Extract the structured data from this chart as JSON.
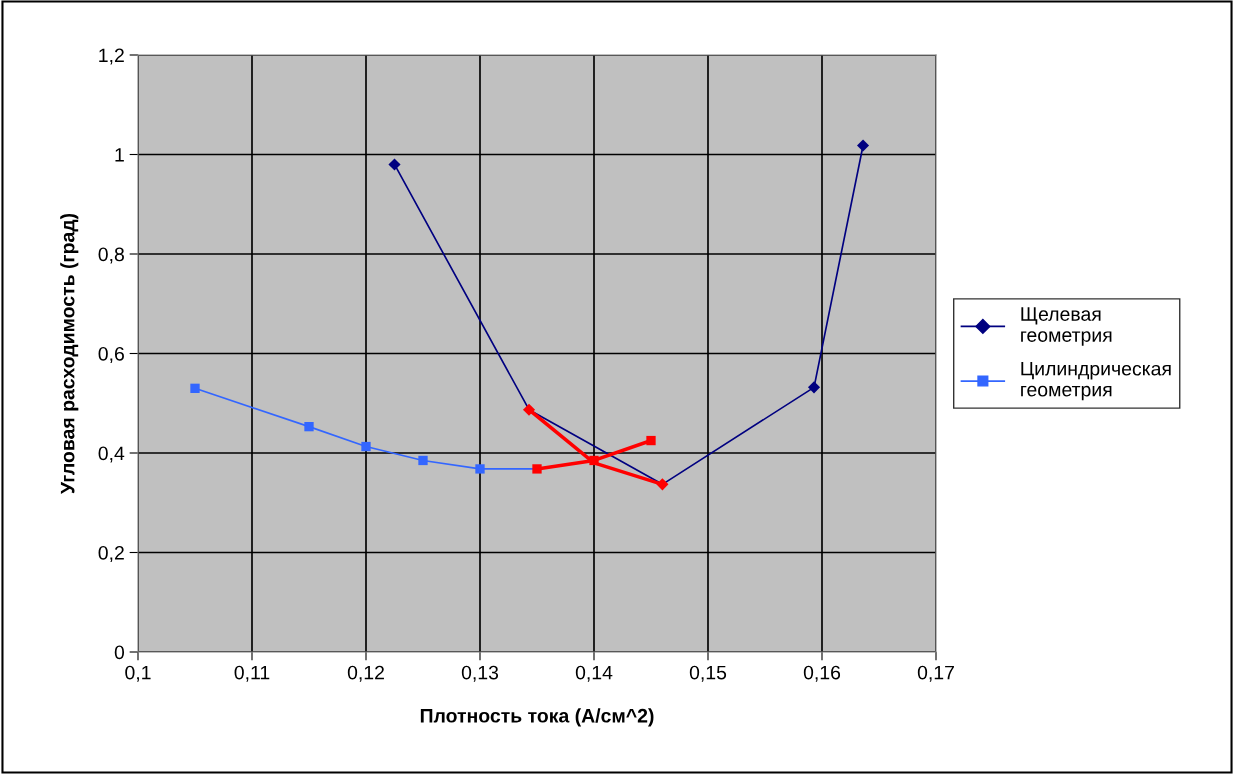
{
  "chart_data": {
    "type": "line",
    "xlabel": "Плотность тока (А/см^2)",
    "ylabel": "Угловая расходимость (град)",
    "xlim": [
      0.1,
      0.17
    ],
    "xticks": [
      {
        "value": 0.1,
        "label": "0,1"
      },
      {
        "value": 0.11,
        "label": "0,11"
      },
      {
        "value": 0.12,
        "label": "0,12"
      },
      {
        "value": 0.13,
        "label": "0,13"
      },
      {
        "value": 0.14,
        "label": "0,14"
      },
      {
        "value": 0.15,
        "label": "0,15"
      },
      {
        "value": 0.16,
        "label": "0,16"
      },
      {
        "value": 0.17,
        "label": "0,17"
      }
    ],
    "ylim": [
      0,
      1.2
    ],
    "yticks": [
      0,
      {
        "value": 0.2,
        "label": "0,2"
      },
      {
        "value": 0.4,
        "label": "0,4"
      },
      {
        "value": 0.6,
        "label": "0,6"
      },
      {
        "value": 0.8,
        "label": "0,8"
      },
      1,
      {
        "value": 1.2,
        "label": "1,2"
      }
    ],
    "grid": true,
    "legend": "right",
    "series": [
      {
        "name": "Щелевая геометрия",
        "color": "#000080",
        "marker": "diamond",
        "x": [
          0.1225,
          0.1343,
          0.146,
          0.1593,
          0.1636
        ],
        "values": [
          0.98,
          0.487,
          0.337,
          0.532,
          1.018
        ],
        "colors": [
          "#000080",
          "#ff0000",
          "#ff0000",
          "#000080",
          "#000080"
        ]
      },
      {
        "name": "Цилиндрическая геометрия",
        "color": "#3366ff",
        "marker": "square",
        "x": [
          0.105,
          0.115,
          0.12,
          0.125,
          0.13,
          0.135,
          0.14,
          0.145
        ],
        "values": [
          0.53,
          0.453,
          0.413,
          0.385,
          0.368,
          0.368,
          0.385,
          0.425
        ],
        "colors": [
          "#3366ff",
          "#3366ff",
          "#3366ff",
          "#3366ff",
          "#3366ff",
          "#ff0000",
          "#ff0000",
          "#ff0000"
        ]
      },
      {
        "color": "#ff0000",
        "marker": "none",
        "x": [
          0.1343,
          0.14,
          0.146
        ],
        "values": [
          0.487,
          0.38,
          0.337
        ]
      },
      {
        "color": "#ff0000",
        "marker": "none",
        "x": [
          0.135,
          0.14,
          0.145
        ],
        "values": [
          0.368,
          0.385,
          0.425
        ]
      }
    ]
  }
}
